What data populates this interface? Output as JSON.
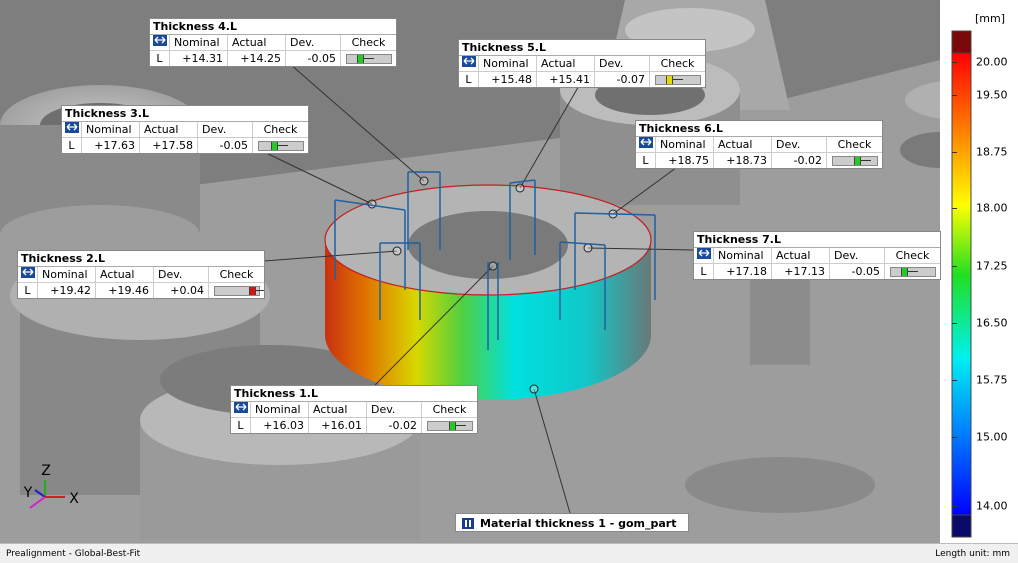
{
  "columns": [
    "Nominal",
    "Actual",
    "Dev.",
    "Check"
  ],
  "callouts": [
    {
      "title": "Thickness 4.L",
      "row": [
        "L",
        "+14.31",
        "+14.25",
        "-0.05"
      ],
      "check_color": "#22cc22"
    },
    {
      "title": "Thickness 5.L",
      "row": [
        "L",
        "+15.48",
        "+15.41",
        "-0.07"
      ],
      "check_color": "#e8d800"
    },
    {
      "title": "Thickness 3.L",
      "row": [
        "L",
        "+17.63",
        "+17.58",
        "-0.05"
      ],
      "check_color": "#22cc22"
    },
    {
      "title": "Thickness 6.L",
      "row": [
        "L",
        "+18.75",
        "+18.73",
        "-0.02"
      ],
      "check_color": "#22cc22"
    },
    {
      "title": "Thickness 2.L",
      "row": [
        "L",
        "+19.42",
        "+19.46",
        "+0.04"
      ],
      "check_color": "#dd1111"
    },
    {
      "title": "Thickness 7.L",
      "row": [
        "L",
        "+17.18",
        "+17.13",
        "-0.05"
      ],
      "check_color": "#22cc22"
    },
    {
      "title": "Thickness 1.L",
      "row": [
        "L",
        "+16.03",
        "+16.01",
        "-0.02"
      ],
      "check_color": "#22cc22"
    }
  ],
  "material_label": "Material thickness 1 - gom_part",
  "colorbar": {
    "unit": "[mm]",
    "labels": [
      "20.00",
      "19.50",
      "18.75",
      "18.00",
      "17.25",
      "16.50",
      "15.75",
      "15.00",
      "14.00"
    ]
  },
  "axes": {
    "x": "X",
    "y": "Y",
    "z": "Z"
  },
  "status": {
    "left": "Prealignment - Global-Best-Fit",
    "right": "Length unit: mm"
  }
}
